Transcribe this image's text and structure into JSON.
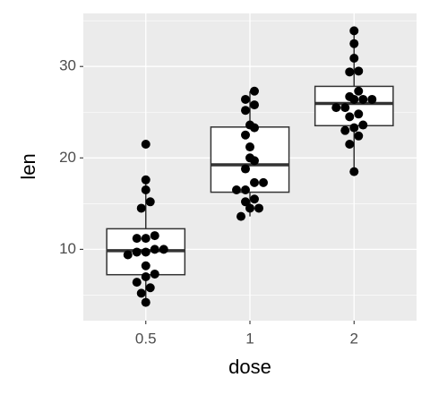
{
  "chart_data": {
    "type": "boxplot",
    "x_label": "dose",
    "y_label": "len",
    "categories": [
      "0.5",
      "1",
      "2"
    ],
    "boxes": [
      {
        "min": 4.2,
        "q1": 7.225,
        "median": 9.85,
        "q3": 12.25,
        "max": 17.6
      },
      {
        "min": 13.6,
        "q1": 16.25,
        "median": 19.25,
        "q3": 23.375,
        "max": 27.3
      },
      {
        "min": 18.5,
        "q1": 23.525,
        "median": 25.95,
        "q3": 27.825,
        "max": 33.9
      }
    ],
    "points": [
      [
        4.2,
        5.2,
        5.8,
        6.4,
        7,
        7.3,
        8.2,
        9.4,
        9.7,
        9.7,
        10,
        10,
        11.2,
        11.2,
        11.5,
        14.5,
        15.2,
        16.5,
        17.6,
        21.5
      ],
      [
        13.6,
        14.5,
        14.5,
        15.2,
        15.5,
        16.5,
        16.5,
        17.3,
        17.3,
        18.8,
        19.7,
        20,
        21.2,
        22.5,
        23.3,
        23.6,
        25.2,
        25.8,
        26.4,
        27.3
      ],
      [
        18.5,
        21.5,
        22.4,
        23,
        23.3,
        23.6,
        24.5,
        24.8,
        25.5,
        25.5,
        26.4,
        26.4,
        26.4,
        26.7,
        27.3,
        29.4,
        29.5,
        30.9,
        32.5,
        33.9
      ]
    ],
    "box_fill": "#ffffff",
    "point_color": "#000000",
    "ylim": [
      2.2,
      35.8
    ],
    "yticks": [
      10,
      20,
      30
    ],
    "minor_yticks": [
      5,
      15,
      25,
      35
    ],
    "grid": true
  }
}
